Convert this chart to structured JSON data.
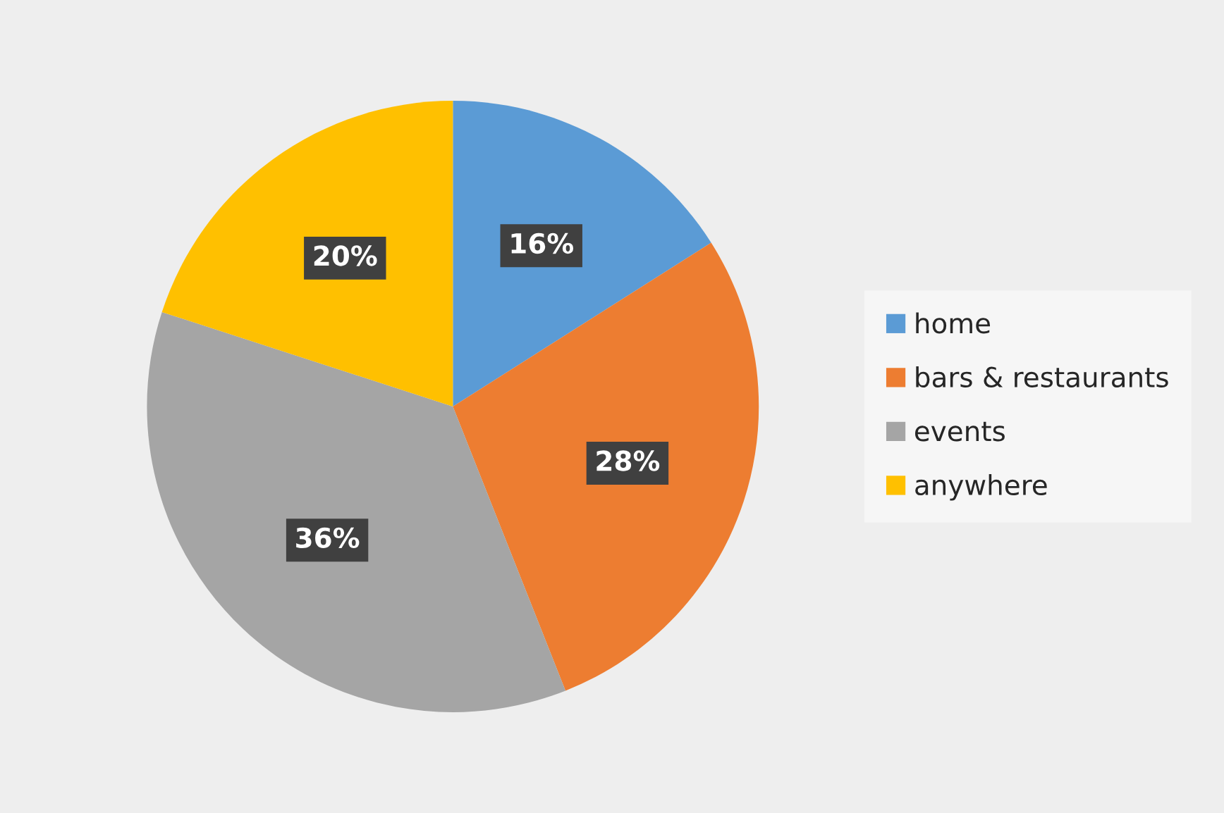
{
  "chart_data": {
    "type": "pie",
    "categories": [
      "home",
      "bars & restaurants",
      "events",
      "anywhere"
    ],
    "values": [
      16,
      28,
      36,
      20
    ],
    "colors": [
      "#5b9bd5",
      "#ed7d31",
      "#a5a5a5",
      "#ffc000"
    ],
    "value_labels": [
      "16%",
      "28%",
      "36%",
      "20%"
    ],
    "legend": "right"
  }
}
